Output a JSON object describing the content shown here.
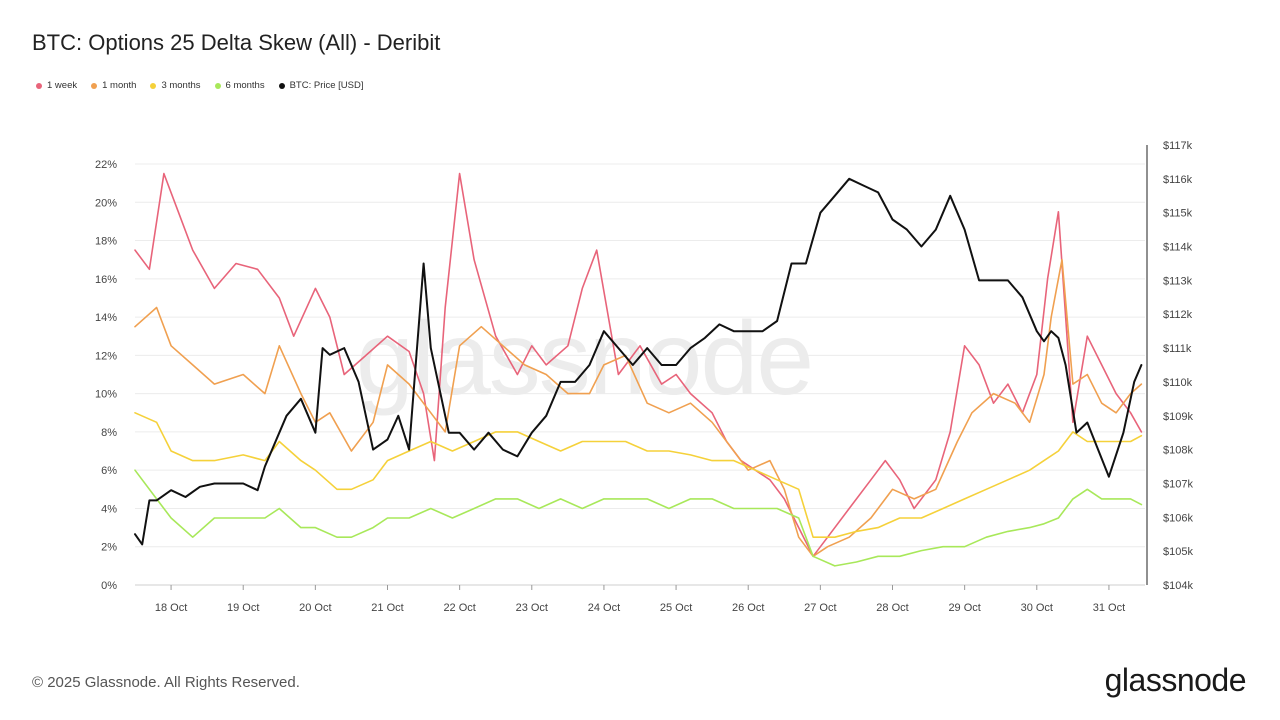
{
  "title": "BTC: Options 25 Delta Skew (All) - Deribit",
  "legend": [
    {
      "label": "1 week",
      "color": "#e8647a"
    },
    {
      "label": "1 month",
      "color": "#f0a050"
    },
    {
      "label": "3 months",
      "color": "#f5d13a"
    },
    {
      "label": "6 months",
      "color": "#a8e85a"
    },
    {
      "label": "BTC: Price [USD]",
      "color": "#111111"
    }
  ],
  "watermark": "glassnode",
  "footer": "© 2025 Glassnode. All Rights Reserved.",
  "brand": "glassnode",
  "chart_data": {
    "type": "line",
    "title": "BTC: Options 25 Delta Skew (All) - Deribit",
    "x_start": "17.5 Oct",
    "x_end": "31.5 Oct",
    "x_tick_labels": [
      "18 Oct",
      "19 Oct",
      "20 Oct",
      "21 Oct",
      "22 Oct",
      "23 Oct",
      "24 Oct",
      "25 Oct",
      "26 Oct",
      "27 Oct",
      "28 Oct",
      "29 Oct",
      "30 Oct",
      "31 Oct"
    ],
    "x_tick_values": [
      18,
      19,
      20,
      21,
      22,
      23,
      24,
      25,
      26,
      27,
      28,
      29,
      30,
      31
    ],
    "y_left": {
      "range": [
        0,
        22
      ],
      "unit": "%",
      "tick_labels": [
        "0%",
        "2%",
        "4%",
        "6%",
        "8%",
        "10%",
        "12%",
        "14%",
        "16%",
        "18%",
        "20%",
        "22%"
      ]
    },
    "y_right": {
      "range": [
        104000,
        117000
      ],
      "unit": "USD",
      "tick_labels": [
        "$104k",
        "$105k",
        "$106k",
        "$107k",
        "$108k",
        "$109k",
        "$110k",
        "$111k",
        "$112k",
        "$113k",
        "$114k",
        "$115k",
        "$116k",
        "$117k"
      ]
    },
    "grid": "horizontal",
    "legend_position": "top-left",
    "series": [
      {
        "name": "1 week",
        "axis": "left",
        "color": "#e8647a",
        "x": [
          17.5,
          17.7,
          17.9,
          18.1,
          18.3,
          18.6,
          18.9,
          19.2,
          19.5,
          19.7,
          20.0,
          20.2,
          20.4,
          20.7,
          21.0,
          21.3,
          21.5,
          21.65,
          21.8,
          22.0,
          22.2,
          22.5,
          22.8,
          23.0,
          23.2,
          23.5,
          23.7,
          23.9,
          24.2,
          24.5,
          24.8,
          25.0,
          25.2,
          25.5,
          25.7,
          25.9,
          26.1,
          26.3,
          26.5,
          26.7,
          26.9,
          27.1,
          27.4,
          27.7,
          27.9,
          28.1,
          28.3,
          28.6,
          28.8,
          29.0,
          29.2,
          29.4,
          29.6,
          29.8,
          30.0,
          30.15,
          30.3,
          30.5,
          30.7,
          30.9,
          31.1,
          31.3,
          31.45
        ],
        "y": [
          17.5,
          16.5,
          21.5,
          19.5,
          17.5,
          15.5,
          16.8,
          16.5,
          15.0,
          13.0,
          15.5,
          14.0,
          11.0,
          12.0,
          13.0,
          12.2,
          10.0,
          6.5,
          14.5,
          21.5,
          17.0,
          13.0,
          11.0,
          12.5,
          11.5,
          12.5,
          15.5,
          17.5,
          11.0,
          12.5,
          10.5,
          11.0,
          10.0,
          9.0,
          7.5,
          6.5,
          6.0,
          5.5,
          4.5,
          3.0,
          1.5,
          2.5,
          4.0,
          5.5,
          6.5,
          5.5,
          4.0,
          5.5,
          8.0,
          12.5,
          11.5,
          9.5,
          10.5,
          9.0,
          11.0,
          16.0,
          19.5,
          8.5,
          13.0,
          11.5,
          10.0,
          9.0,
          8.0
        ]
      },
      {
        "name": "1 month",
        "axis": "left",
        "color": "#f0a050",
        "x": [
          17.5,
          17.8,
          18.0,
          18.3,
          18.6,
          19.0,
          19.3,
          19.5,
          19.8,
          20.0,
          20.2,
          20.5,
          20.8,
          21.0,
          21.3,
          21.6,
          21.8,
          22.0,
          22.3,
          22.6,
          22.9,
          23.2,
          23.5,
          23.8,
          24.0,
          24.3,
          24.6,
          24.9,
          25.2,
          25.5,
          25.8,
          26.0,
          26.3,
          26.5,
          26.7,
          26.9,
          27.1,
          27.4,
          27.7,
          28.0,
          28.3,
          28.6,
          28.9,
          29.1,
          29.4,
          29.7,
          29.9,
          30.1,
          30.2,
          30.35,
          30.5,
          30.7,
          30.9,
          31.1,
          31.3,
          31.45
        ],
        "y": [
          13.5,
          14.5,
          12.5,
          11.5,
          10.5,
          11.0,
          10.0,
          12.5,
          10.0,
          8.5,
          9.0,
          7.0,
          8.5,
          11.5,
          10.5,
          9.0,
          8.0,
          12.5,
          13.5,
          12.5,
          11.5,
          11.0,
          10.0,
          10.0,
          11.5,
          12.0,
          9.5,
          9.0,
          9.5,
          8.5,
          7.0,
          6.0,
          6.5,
          5.0,
          2.5,
          1.5,
          2.0,
          2.5,
          3.5,
          5.0,
          4.5,
          5.0,
          7.5,
          9.0,
          10.0,
          9.5,
          8.5,
          11.0,
          14.0,
          17.0,
          10.5,
          11.0,
          9.5,
          9.0,
          10.0,
          10.5
        ]
      },
      {
        "name": "3 months",
        "axis": "left",
        "color": "#f5d13a",
        "x": [
          17.5,
          17.8,
          18.0,
          18.3,
          18.6,
          19.0,
          19.3,
          19.5,
          19.8,
          20.0,
          20.3,
          20.5,
          20.8,
          21.0,
          21.3,
          21.6,
          21.9,
          22.2,
          22.5,
          22.8,
          23.1,
          23.4,
          23.7,
          24.0,
          24.3,
          24.6,
          24.9,
          25.2,
          25.5,
          25.8,
          26.1,
          26.4,
          26.7,
          26.9,
          27.2,
          27.5,
          27.8,
          28.1,
          28.4,
          28.7,
          29.0,
          29.3,
          29.6,
          29.9,
          30.1,
          30.3,
          30.5,
          30.7,
          30.9,
          31.1,
          31.3,
          31.45
        ],
        "y": [
          9.0,
          8.5,
          7.0,
          6.5,
          6.5,
          6.8,
          6.5,
          7.5,
          6.5,
          6.0,
          5.0,
          5.0,
          5.5,
          6.5,
          7.0,
          7.5,
          7.0,
          7.5,
          8.0,
          8.0,
          7.5,
          7.0,
          7.5,
          7.5,
          7.5,
          7.0,
          7.0,
          6.8,
          6.5,
          6.5,
          6.0,
          5.5,
          5.0,
          2.5,
          2.5,
          2.8,
          3.0,
          3.5,
          3.5,
          4.0,
          4.5,
          5.0,
          5.5,
          6.0,
          6.5,
          7.0,
          8.0,
          7.5,
          7.5,
          7.5,
          7.5,
          7.8
        ]
      },
      {
        "name": "6 months",
        "axis": "left",
        "color": "#a8e85a",
        "x": [
          17.5,
          17.8,
          18.0,
          18.3,
          18.6,
          19.0,
          19.3,
          19.5,
          19.8,
          20.0,
          20.3,
          20.5,
          20.8,
          21.0,
          21.3,
          21.6,
          21.9,
          22.2,
          22.5,
          22.8,
          23.1,
          23.4,
          23.7,
          24.0,
          24.3,
          24.6,
          24.9,
          25.2,
          25.5,
          25.8,
          26.1,
          26.4,
          26.7,
          26.9,
          27.2,
          27.5,
          27.8,
          28.1,
          28.4,
          28.7,
          29.0,
          29.3,
          29.6,
          29.9,
          30.1,
          30.3,
          30.5,
          30.7,
          30.9,
          31.1,
          31.3,
          31.45
        ],
        "y": [
          6.0,
          4.5,
          3.5,
          2.5,
          3.5,
          3.5,
          3.5,
          4.0,
          3.0,
          3.0,
          2.5,
          2.5,
          3.0,
          3.5,
          3.5,
          4.0,
          3.5,
          4.0,
          4.5,
          4.5,
          4.0,
          4.5,
          4.0,
          4.5,
          4.5,
          4.5,
          4.0,
          4.5,
          4.5,
          4.0,
          4.0,
          4.0,
          3.5,
          1.5,
          1.0,
          1.2,
          1.5,
          1.5,
          1.8,
          2.0,
          2.0,
          2.5,
          2.8,
          3.0,
          3.2,
          3.5,
          4.5,
          5.0,
          4.5,
          4.5,
          4.5,
          4.2
        ]
      },
      {
        "name": "BTC: Price [USD]",
        "axis": "right",
        "color": "#111111",
        "x": [
          17.5,
          17.6,
          17.7,
          17.8,
          18.0,
          18.2,
          18.4,
          18.6,
          18.8,
          19.0,
          19.2,
          19.3,
          19.5,
          19.6,
          19.8,
          20.0,
          20.1,
          20.2,
          20.4,
          20.6,
          20.8,
          21.0,
          21.15,
          21.3,
          21.5,
          21.6,
          21.7,
          21.85,
          22.0,
          22.2,
          22.4,
          22.6,
          22.8,
          23.0,
          23.2,
          23.4,
          23.6,
          23.8,
          24.0,
          24.2,
          24.4,
          24.6,
          24.8,
          25.0,
          25.2,
          25.4,
          25.6,
          25.8,
          26.0,
          26.2,
          26.4,
          26.6,
          26.8,
          27.0,
          27.2,
          27.4,
          27.6,
          27.8,
          28.0,
          28.2,
          28.4,
          28.6,
          28.8,
          29.0,
          29.2,
          29.4,
          29.6,
          29.8,
          30.0,
          30.1,
          30.2,
          30.3,
          30.4,
          30.55,
          30.7,
          30.85,
          31.0,
          31.2,
          31.35,
          31.45
        ],
        "y": [
          105.5,
          105.2,
          106.5,
          106.5,
          106.8,
          106.6,
          106.9,
          107.0,
          107.0,
          107.0,
          106.8,
          107.5,
          108.5,
          109.0,
          109.5,
          108.5,
          111.0,
          110.8,
          111.0,
          110.0,
          108.0,
          108.3,
          109.0,
          108.0,
          113.5,
          111.0,
          110.0,
          108.5,
          108.5,
          108.0,
          108.5,
          108.0,
          107.8,
          108.5,
          109.0,
          110.0,
          110.0,
          110.5,
          111.5,
          111.0,
          110.5,
          111.0,
          110.5,
          110.5,
          111.0,
          111.3,
          111.7,
          111.5,
          111.5,
          111.5,
          111.8,
          113.5,
          113.5,
          115.0,
          115.5,
          116.0,
          115.8,
          115.6,
          114.8,
          114.5,
          114.0,
          114.5,
          115.5,
          114.5,
          113.0,
          113.0,
          113.0,
          112.5,
          111.5,
          111.2,
          111.5,
          111.3,
          110.5,
          108.5,
          108.8,
          108.0,
          107.2,
          108.5,
          110.0,
          110.5
        ]
      }
    ]
  }
}
